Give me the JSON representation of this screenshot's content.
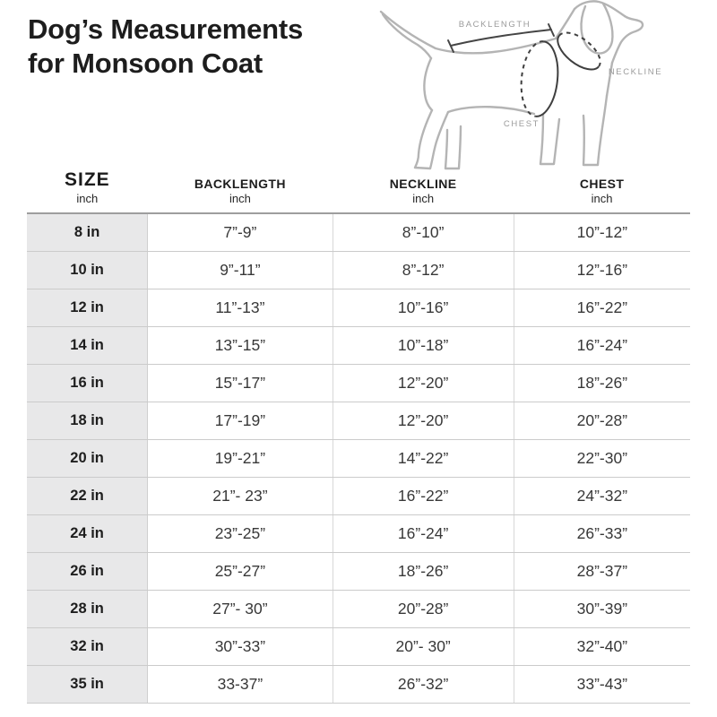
{
  "page": {
    "title_line1": "Dog’s Measurements",
    "title_line2": "for Monsoon Coat"
  },
  "diagram": {
    "labels": {
      "backlength": "BACKLENGTH",
      "neckline": "NECKLINE",
      "chest": "CHEST"
    }
  },
  "table": {
    "columns": [
      {
        "label": "SIZE",
        "sub": "inch"
      },
      {
        "label": "BACKLENGTH",
        "sub": "inch"
      },
      {
        "label": "NECKLINE",
        "sub": "inch"
      },
      {
        "label": "CHEST",
        "sub": "inch"
      }
    ],
    "rows": [
      {
        "size": "8 in",
        "backlength": "7”-9”",
        "neckline": "8”-10”",
        "chest": "10”-12”"
      },
      {
        "size": "10 in",
        "backlength": "9”-11”",
        "neckline": "8”-12”",
        "chest": "12”-16”"
      },
      {
        "size": "12 in",
        "backlength": "11”-13”",
        "neckline": "10”-16”",
        "chest": "16”-22”"
      },
      {
        "size": "14 in",
        "backlength": "13”-15”",
        "neckline": "10”-18”",
        "chest": "16”-24”"
      },
      {
        "size": "16 in",
        "backlength": "15”-17”",
        "neckline": "12”-20”",
        "chest": "18”-26”"
      },
      {
        "size": "18 in",
        "backlength": "17”-19”",
        "neckline": "12”-20”",
        "chest": "20”-28”"
      },
      {
        "size": "20 in",
        "backlength": "19”-21”",
        "neckline": "14”-22”",
        "chest": "22”-30”"
      },
      {
        "size": "22 in",
        "backlength": "21”- 23”",
        "neckline": "16”-22”",
        "chest": "24”-32”"
      },
      {
        "size": "24 in",
        "backlength": "23”-25”",
        "neckline": "16”-24”",
        "chest": "26”-33”"
      },
      {
        "size": "26 in",
        "backlength": "25”-27”",
        "neckline": "18”-26”",
        "chest": "28”-37”"
      },
      {
        "size": "28 in",
        "backlength": "27”- 30”",
        "neckline": "20”-28”",
        "chest": "30”-39”"
      },
      {
        "size": "32 in",
        "backlength": "30”-33”",
        "neckline": "20”- 30”",
        "chest": "32”-40”"
      },
      {
        "size": "35 in",
        "backlength": "33-37”",
        "neckline": "26”-32”",
        "chest": "33”-43”"
      }
    ]
  },
  "colors": {
    "title_text": "#1d1d1d",
    "cell_text": "#383838",
    "size_col_bg": "#e8e8e9",
    "row_border": "#cbcbcb",
    "header_border": "#9e9e9e",
    "diagram_outline": "#b4b4b4",
    "diagram_accent": "#454545",
    "diagram_label": "#9b9b9b"
  }
}
